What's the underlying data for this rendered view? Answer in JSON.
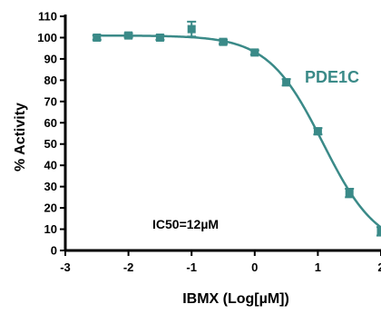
{
  "chart_data": {
    "type": "line",
    "xlabel": "IBMX (Log[µM])",
    "ylabel": "% Activity",
    "xlim": [
      -3,
      2
    ],
    "ylim": [
      0,
      110
    ],
    "x_ticks": [
      -3,
      -2,
      -1,
      0,
      1,
      2
    ],
    "x_tick_labels": [
      "-3",
      "-2",
      "-1",
      "0",
      "1",
      "2"
    ],
    "y_ticks": [
      0,
      10,
      20,
      30,
      40,
      50,
      60,
      70,
      80,
      90,
      100,
      110
    ],
    "y_tick_labels": [
      "0",
      "10",
      "20",
      "30",
      "40",
      "50",
      "60",
      "70",
      "80",
      "90",
      "100",
      "110"
    ],
    "series": [
      {
        "name": "PDE1C",
        "color": "#3a8a88",
        "points": [
          {
            "x": -2.5,
            "y": 100,
            "err": 1
          },
          {
            "x": -2.0,
            "y": 101,
            "err": 1
          },
          {
            "x": -1.5,
            "y": 100,
            "err": 1
          },
          {
            "x": -1.0,
            "y": 104,
            "err": 3.5
          },
          {
            "x": -0.5,
            "y": 98,
            "err": 1
          },
          {
            "x": 0.0,
            "y": 93,
            "err": 1
          },
          {
            "x": 0.5,
            "y": 79,
            "err": 1.5
          },
          {
            "x": 1.0,
            "y": 56,
            "err": 1.5
          },
          {
            "x": 1.5,
            "y": 27,
            "err": 2
          },
          {
            "x": 2.0,
            "y": 9,
            "err": 2
          }
        ],
        "fit": {
          "top": 101,
          "bottom": 0,
          "log_ic50": 1.08,
          "hill_slope": 1
        }
      }
    ],
    "annotations": [
      "IC50=12µM"
    ]
  }
}
